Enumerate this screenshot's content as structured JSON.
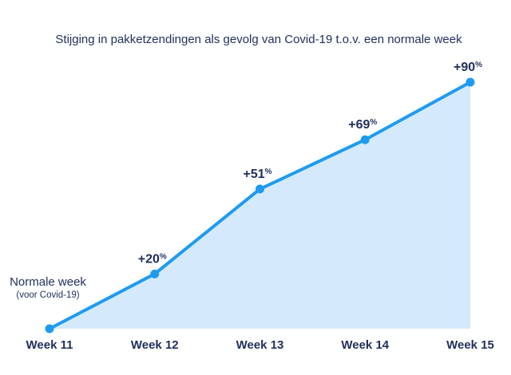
{
  "chart_data": {
    "type": "area",
    "title": "Stijging in pakketzendingen als gevolg van Covid-19 t.o.v. een normale week",
    "categories": [
      "Week 11",
      "Week 12",
      "Week 13",
      "Week 14",
      "Week 15"
    ],
    "values": [
      0,
      20,
      51,
      69,
      90
    ],
    "data_labels": [
      "",
      "+20",
      "+51",
      "+69",
      "+90"
    ],
    "data_label_unit": "%",
    "annotation": {
      "line1": "Normale week",
      "line2": "(voor Covid-19)"
    },
    "ylim": [
      0,
      90
    ],
    "grid": false,
    "legend": "none",
    "colors": {
      "line": "#1e9bf0",
      "fill": "#d4eafc",
      "text": "#1f2f5c"
    }
  }
}
